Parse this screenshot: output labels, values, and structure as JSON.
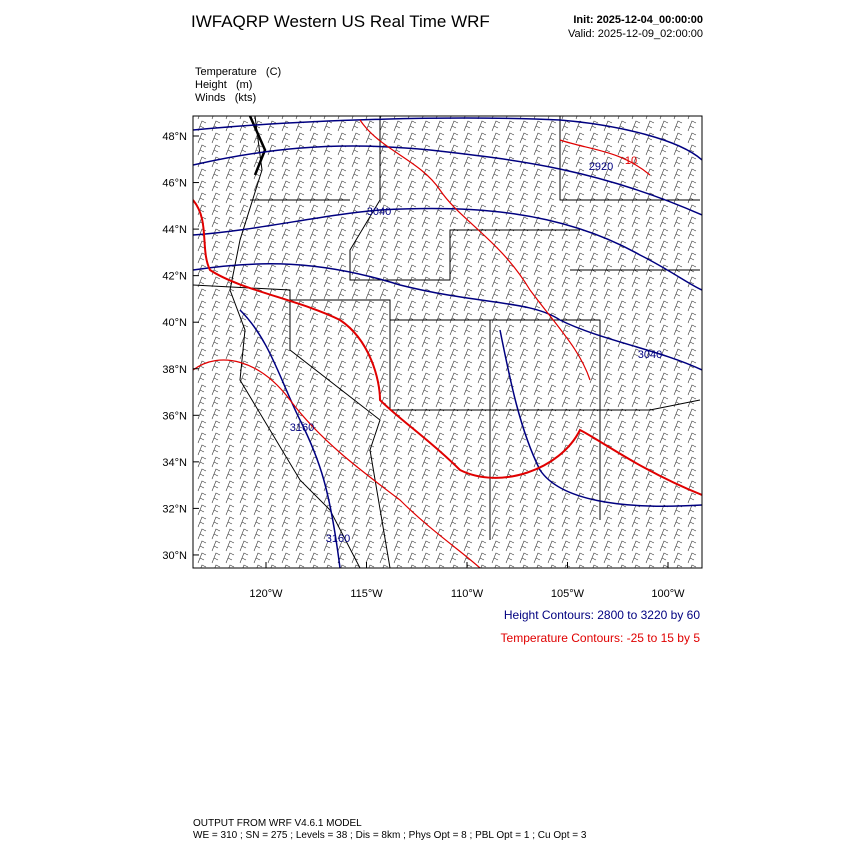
{
  "header": {
    "title": "IWFAQRP Western US Real Time WRF",
    "init": "Init: 2025-12-04_00:00:00",
    "valid": "Valid: 2025-12-09_02:00:00"
  },
  "fields": [
    "Temperature   (C)",
    "Height   (m)",
    "Winds   (kts)"
  ],
  "map": {
    "lat_labels": [
      "48°N",
      "46°N",
      "44°N",
      "42°N",
      "40°N",
      "38°N",
      "36°N",
      "34°N",
      "32°N",
      "30°N"
    ],
    "lon_labels": [
      "120°W",
      "115°W",
      "110°W",
      "105°W",
      "100°W"
    ],
    "contour_labels": [
      "2920",
      "10",
      "3040",
      "3040",
      "3160",
      "3160"
    ]
  },
  "legend": {
    "height": "Height Contours: 2800 to 3220 by 60",
    "temperature": "Temperature Contours: -25 to 15 by 5"
  },
  "footer": {
    "line1": "OUTPUT FROM WRF V4.6.1 MODEL",
    "line2": "WE = 310 ; SN = 275 ; Levels = 38 ; Dis = 8km ; Phys Opt = 8 ; PBL Opt = 1 ; Cu Opt = 3"
  }
}
